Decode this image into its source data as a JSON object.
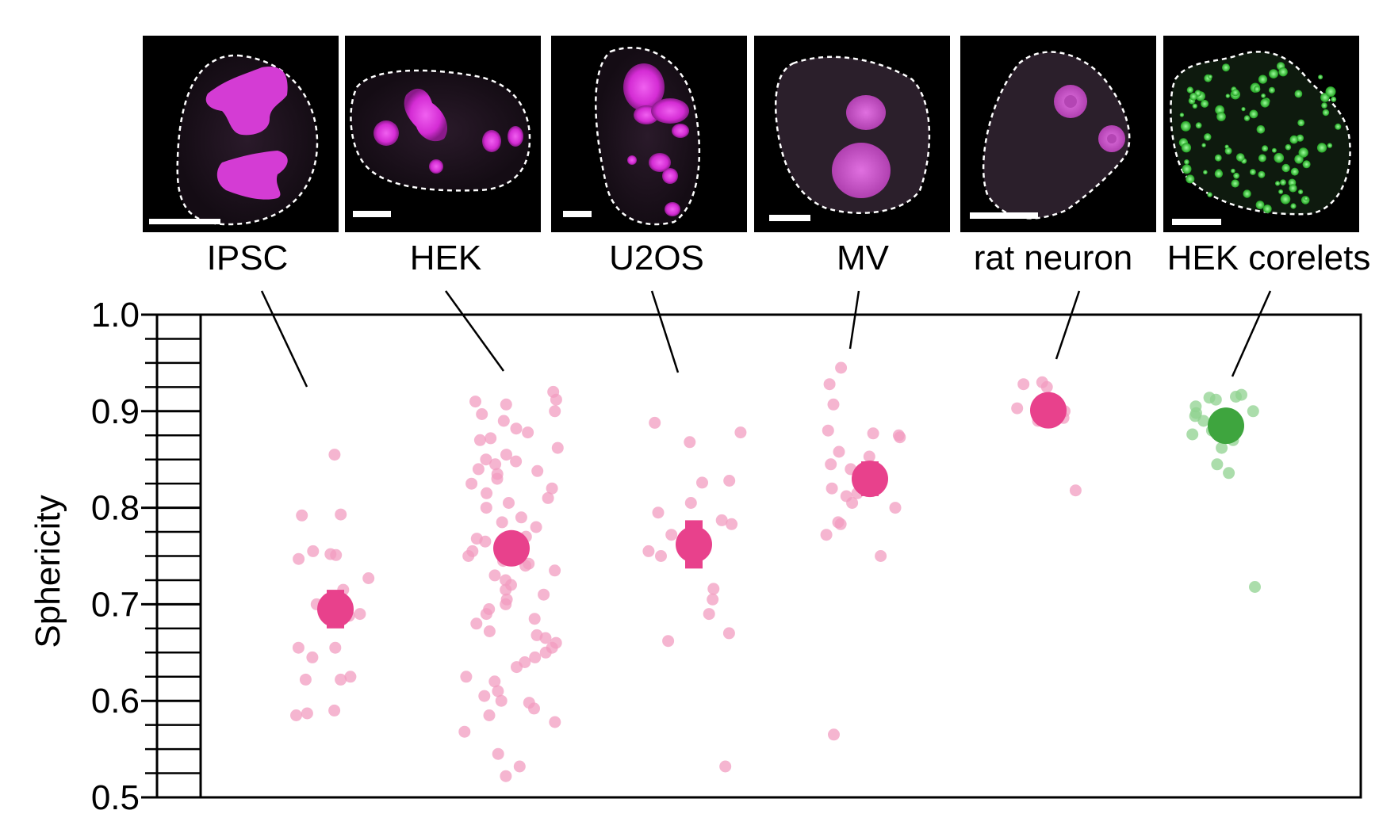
{
  "chart_data": {
    "type": "scatter",
    "title": "",
    "xlabel": "",
    "ylabel": "Sphericity",
    "ylim": [
      0.5,
      1.0
    ],
    "yticks": [
      0.5,
      0.6,
      0.7,
      0.8,
      0.9,
      1.0
    ],
    "grid": false,
    "legend": "none",
    "categories": [
      "IPSC",
      "HEK",
      "U2OS",
      "MV",
      "rat neuron",
      "HEK corelets"
    ],
    "colors": {
      "pink_mean": "#e8418c",
      "pink_point": "#f19cc0",
      "green_mean": "#3ea53e",
      "green_point": "#8fd18f"
    },
    "series": [
      {
        "category": "IPSC",
        "color": "pink",
        "mean": 0.695,
        "err": 0.02,
        "points": [
          0.855,
          0.793,
          0.792,
          0.755,
          0.752,
          0.751,
          0.747,
          0.727,
          0.715,
          0.705,
          0.7,
          0.69,
          0.688,
          0.655,
          0.655,
          0.645,
          0.625,
          0.622,
          0.622,
          0.59,
          0.587,
          0.585
        ]
      },
      {
        "category": "HEK",
        "color": "pink",
        "mean": 0.758,
        "err": 0.015,
        "points": [
          0.92,
          0.912,
          0.91,
          0.907,
          0.9,
          0.897,
          0.89,
          0.882,
          0.878,
          0.872,
          0.87,
          0.862,
          0.855,
          0.85,
          0.848,
          0.845,
          0.84,
          0.838,
          0.835,
          0.83,
          0.825,
          0.82,
          0.815,
          0.81,
          0.805,
          0.8,
          0.79,
          0.785,
          0.78,
          0.77,
          0.768,
          0.765,
          0.76,
          0.755,
          0.75,
          0.745,
          0.742,
          0.74,
          0.735,
          0.73,
          0.725,
          0.72,
          0.715,
          0.71,
          0.705,
          0.7,
          0.695,
          0.69,
          0.685,
          0.68,
          0.672,
          0.668,
          0.665,
          0.66,
          0.655,
          0.65,
          0.645,
          0.64,
          0.635,
          0.625,
          0.62,
          0.61,
          0.605,
          0.6,
          0.598,
          0.592,
          0.585,
          0.578,
          0.568,
          0.545,
          0.532,
          0.522
        ]
      },
      {
        "category": "U2OS",
        "color": "pink",
        "mean": 0.762,
        "err": 0.025,
        "points": [
          0.888,
          0.878,
          0.868,
          0.828,
          0.826,
          0.805,
          0.795,
          0.787,
          0.783,
          0.772,
          0.755,
          0.75,
          0.716,
          0.705,
          0.69,
          0.67,
          0.662,
          0.532
        ]
      },
      {
        "category": "MV",
        "color": "pink",
        "mean": 0.83,
        "err": 0.018,
        "points": [
          0.945,
          0.928,
          0.907,
          0.88,
          0.877,
          0.875,
          0.873,
          0.858,
          0.853,
          0.845,
          0.84,
          0.83,
          0.82,
          0.815,
          0.812,
          0.805,
          0.8,
          0.785,
          0.783,
          0.772,
          0.75,
          0.565
        ]
      },
      {
        "category": "rat neuron",
        "color": "pink",
        "mean": 0.901,
        "err": 0.008,
        "points": [
          0.93,
          0.928,
          0.925,
          0.912,
          0.903,
          0.9,
          0.895,
          0.893,
          0.89,
          0.818
        ]
      },
      {
        "category": "HEK corelets",
        "color": "green",
        "mean": 0.885,
        "err": 0.014,
        "points": [
          0.917,
          0.915,
          0.914,
          0.912,
          0.905,
          0.9,
          0.898,
          0.895,
          0.89,
          0.88,
          0.876,
          0.87,
          0.862,
          0.845,
          0.836,
          0.718
        ]
      }
    ],
    "image_panels": [
      {
        "category": "IPSC"
      },
      {
        "category": "HEK"
      },
      {
        "category": "U2OS"
      },
      {
        "category": "MV"
      },
      {
        "category": "rat neuron"
      },
      {
        "category": "HEK corelets",
        "stain": "green"
      }
    ]
  }
}
